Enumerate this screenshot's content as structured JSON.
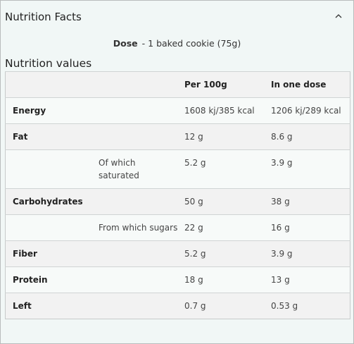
{
  "header": {
    "title": "Nutrition Facts"
  },
  "dose": {
    "label": "Dose",
    "value": "- 1 baked cookie (75g)"
  },
  "section_title": "Nutrition values",
  "table": {
    "columns": [
      "",
      "",
      "Per 100g",
      "In one dose"
    ],
    "rows": [
      {
        "name": "Energy",
        "sub": "",
        "per100": "1608 kj/385 kcal",
        "dose": "1206 kj/289 kcal"
      },
      {
        "name": "Fat",
        "sub": "",
        "per100": "12 g",
        "dose": "8.6 g"
      },
      {
        "name": "",
        "sub": "Of which saturated",
        "per100": "5.2 g",
        "dose": "3.9 g"
      },
      {
        "name": "Carbohydrates",
        "sub": "",
        "per100": "50 g",
        "dose": "38 g"
      },
      {
        "name": "",
        "sub": "From which sugars",
        "per100": "22 g",
        "dose": "16 g"
      },
      {
        "name": "Fiber",
        "sub": "",
        "per100": "5.2 g",
        "dose": "3.9 g"
      },
      {
        "name": "Protein",
        "sub": "",
        "per100": "18 g",
        "dose": "13 g"
      },
      {
        "name": "Left",
        "sub": "",
        "per100": "0.7 g",
        "dose": "0.53 g"
      }
    ]
  }
}
